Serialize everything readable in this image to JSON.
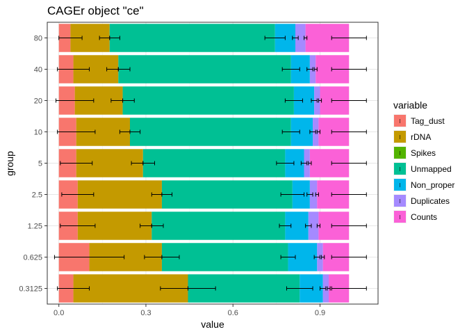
{
  "chart_data": {
    "type": "bar",
    "orientation": "horizontal",
    "stacked": true,
    "title": "CAGEr object \"ce\"",
    "xlabel": "value",
    "ylabel": "group",
    "xlim": [
      -0.04,
      1.1
    ],
    "x_ticks": [
      0.0,
      0.3,
      0.6,
      0.9
    ],
    "x_tick_labels": [
      "0.0",
      "0.3",
      "0.6",
      "0.9"
    ],
    "grid": true,
    "legend_position": "right",
    "legend_title": "variable",
    "categories": [
      "80",
      "40",
      "20",
      "10",
      "5",
      "2.5",
      "1.25",
      "0.625",
      "0.3125"
    ],
    "series": [
      {
        "name": "Tag_dust",
        "color": "#F8766D",
        "values": [
          0.04,
          0.05,
          0.055,
          0.06,
          0.06,
          0.065,
          0.065,
          0.105,
          0.05
        ],
        "errors": [
          0.04,
          0.055,
          0.065,
          0.065,
          0.055,
          0.055,
          0.06,
          0.12,
          0.055
        ]
      },
      {
        "name": "rDNA",
        "color": "#C49A00",
        "values": [
          0.135,
          0.155,
          0.165,
          0.185,
          0.23,
          0.29,
          0.255,
          0.25,
          0.395
        ],
        "errors": [
          0.035,
          0.04,
          0.04,
          0.035,
          0.04,
          0.035,
          0.04,
          0.06,
          0.095
        ]
      },
      {
        "name": "Spikes",
        "color": "#53B400",
        "values": [
          0.0,
          0.0,
          0.0,
          0.0,
          0.0,
          0.0,
          0.0,
          0.0,
          0.0
        ],
        "errors": [
          0,
          0,
          0,
          0,
          0,
          0,
          0,
          0,
          0
        ]
      },
      {
        "name": "Unmapped",
        "color": "#00C094",
        "values": [
          0.57,
          0.595,
          0.59,
          0.555,
          0.49,
          0.45,
          0.46,
          0.435,
          0.385
        ],
        "errors": [
          0.035,
          0.03,
          0.03,
          0.03,
          0.03,
          0.04,
          0.02,
          0.025,
          0.045
        ]
      },
      {
        "name": "Non_proper",
        "color": "#00B6EB",
        "values": [
          0.07,
          0.065,
          0.07,
          0.075,
          0.065,
          0.06,
          0.08,
          0.1,
          0.08
        ],
        "errors": [
          0.01,
          0.01,
          0.01,
          0.01,
          0.01,
          0.01,
          0.01,
          0.01,
          0.01
        ]
      },
      {
        "name": "Duplicates",
        "color": "#A58AFF",
        "values": [
          0.035,
          0.02,
          0.02,
          0.02,
          0.02,
          0.025,
          0.035,
          0.02,
          0.02
        ],
        "errors": [
          0.005,
          0.005,
          0.005,
          0.005,
          0.005,
          0.005,
          0.005,
          0.005,
          0.005
        ]
      },
      {
        "name": "Counts",
        "color": "#FB61D7",
        "values": [
          0.15,
          0.115,
          0.1,
          0.105,
          0.135,
          0.11,
          0.105,
          0.09,
          0.07
        ],
        "errors": [
          0.06,
          0.06,
          0.06,
          0.06,
          0.06,
          0.06,
          0.06,
          0.06,
          0.06
        ]
      }
    ]
  }
}
